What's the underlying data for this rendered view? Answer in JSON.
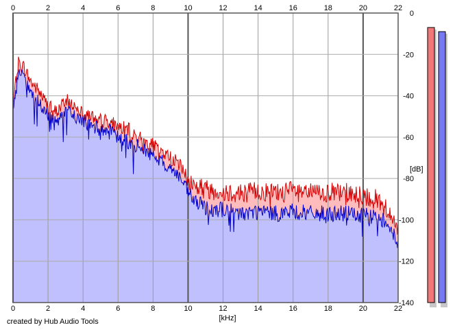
{
  "chart_data": {
    "type": "area",
    "xlabel": "[kHz]",
    "ylabel": "[dB]",
    "xlim": [
      0,
      22
    ],
    "ylim": [
      -140,
      0
    ],
    "x_ticks": [
      0,
      2,
      4,
      6,
      8,
      10,
      12,
      14,
      16,
      18,
      20,
      22
    ],
    "y_ticks": [
      0,
      -20,
      -40,
      -60,
      -80,
      -100,
      -120,
      -140
    ],
    "grid": true,
    "series": [
      {
        "color": "#d00000",
        "fill": "#ffbcbc",
        "x": [
          0,
          0.3,
          0.6,
          1,
          1.5,
          2,
          2.5,
          3,
          3.5,
          4,
          4.5,
          5,
          5.5,
          6,
          6.5,
          7,
          7.5,
          8,
          8.5,
          9,
          9.5,
          10,
          10.5,
          11,
          12,
          13,
          14,
          15,
          16,
          17,
          18,
          19,
          20,
          21,
          21.5,
          22
        ],
        "values": [
          -45,
          -24,
          -26,
          -33,
          -38,
          -45,
          -48,
          -42,
          -45,
          -47,
          -50,
          -52,
          -52,
          -55,
          -56,
          -59,
          -62,
          -64,
          -67,
          -70,
          -73,
          -81,
          -84,
          -85,
          -86,
          -87,
          -86,
          -87,
          -86,
          -87,
          -87,
          -87,
          -88,
          -91,
          -96,
          -106
        ]
      },
      {
        "color": "#0000c8",
        "fill": "#c0c0ff",
        "x": [
          0,
          0.3,
          0.6,
          1,
          1.5,
          2,
          2.5,
          3,
          3.5,
          4,
          4.5,
          5,
          5.5,
          6,
          6.5,
          7,
          7.5,
          8,
          8.5,
          9,
          9.5,
          10,
          10.5,
          11,
          12,
          13,
          14,
          15,
          16,
          17,
          18,
          19,
          20,
          21,
          21.5,
          22
        ],
        "values": [
          -50,
          -29,
          -31,
          -38,
          -44,
          -50,
          -52,
          -47,
          -50,
          -52,
          -55,
          -56,
          -57,
          -60,
          -62,
          -64,
          -66,
          -69,
          -72,
          -75,
          -79,
          -87,
          -92,
          -94,
          -95,
          -97,
          -96,
          -97,
          -96,
          -97,
          -97,
          -97,
          -98,
          -99,
          -102,
          -113
        ]
      }
    ],
    "meters": [
      {
        "color": "#f07878",
        "level_db": -7
      },
      {
        "color": "#7878f0",
        "level_db": -9
      }
    ],
    "credit": "created by Hub Audio Tools"
  }
}
